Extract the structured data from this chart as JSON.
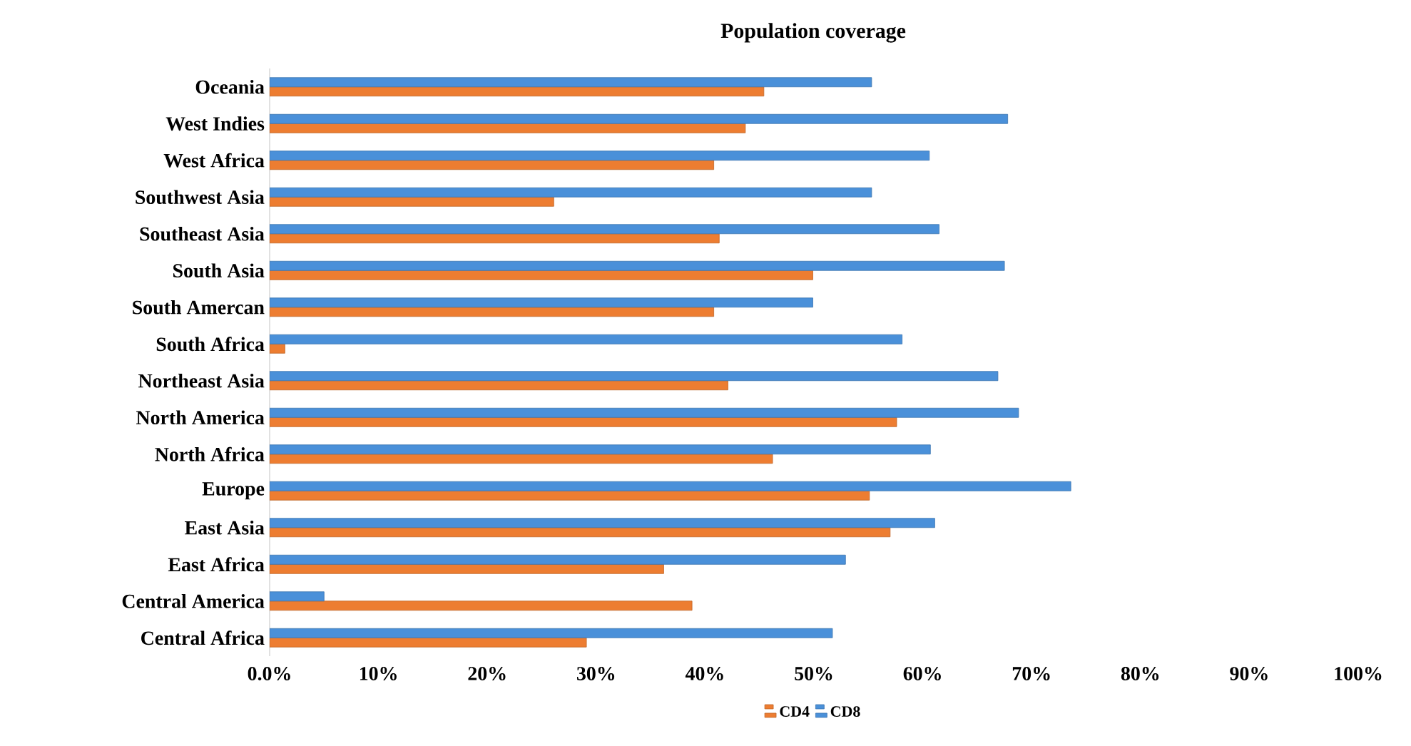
{
  "chart_data": {
    "type": "bar",
    "orientation": "horizontal",
    "title": "Population coverage",
    "categories": [
      "Oceania",
      "West Indies",
      "West Africa",
      "Southwest Asia",
      "Southeast Asia",
      "South Asia",
      "South Amercan",
      "South Africa",
      "Northeast Asia",
      "North America",
      "North Africa",
      "Europe",
      "East Asia",
      "East Africa",
      "Central America",
      "Central Africa"
    ],
    "series": [
      {
        "name": "CD4",
        "color": "#ed7d31",
        "values": [
          45.4,
          43.7,
          40.8,
          26.1,
          41.3,
          49.9,
          40.8,
          1.4,
          42.1,
          57.6,
          46.2,
          55.1,
          57.0,
          36.2,
          38.8,
          29.1
        ]
      },
      {
        "name": "CD8",
        "color": "#4a90d9",
        "values": [
          55.3,
          67.8,
          60.6,
          55.3,
          61.5,
          67.5,
          49.9,
          58.1,
          66.9,
          68.8,
          60.7,
          73.6,
          61.1,
          52.9,
          5.0,
          51.7
        ]
      }
    ],
    "xlim": [
      0,
      100
    ],
    "xticks": [
      {
        "value": 0,
        "label": "0.0%"
      },
      {
        "value": 10,
        "label": "10%"
      },
      {
        "value": 20,
        "label": "20%"
      },
      {
        "value": 30,
        "label": "30%"
      },
      {
        "value": 40,
        "label": "40%"
      },
      {
        "value": 50,
        "label": "50%"
      },
      {
        "value": 60,
        "label": "60%"
      },
      {
        "value": 70,
        "label": "70%"
      },
      {
        "value": 80,
        "label": "80%"
      },
      {
        "value": 90,
        "label": "90%"
      },
      {
        "value": 100,
        "label": "100%"
      }
    ],
    "grid": false,
    "legend": "bottom"
  }
}
